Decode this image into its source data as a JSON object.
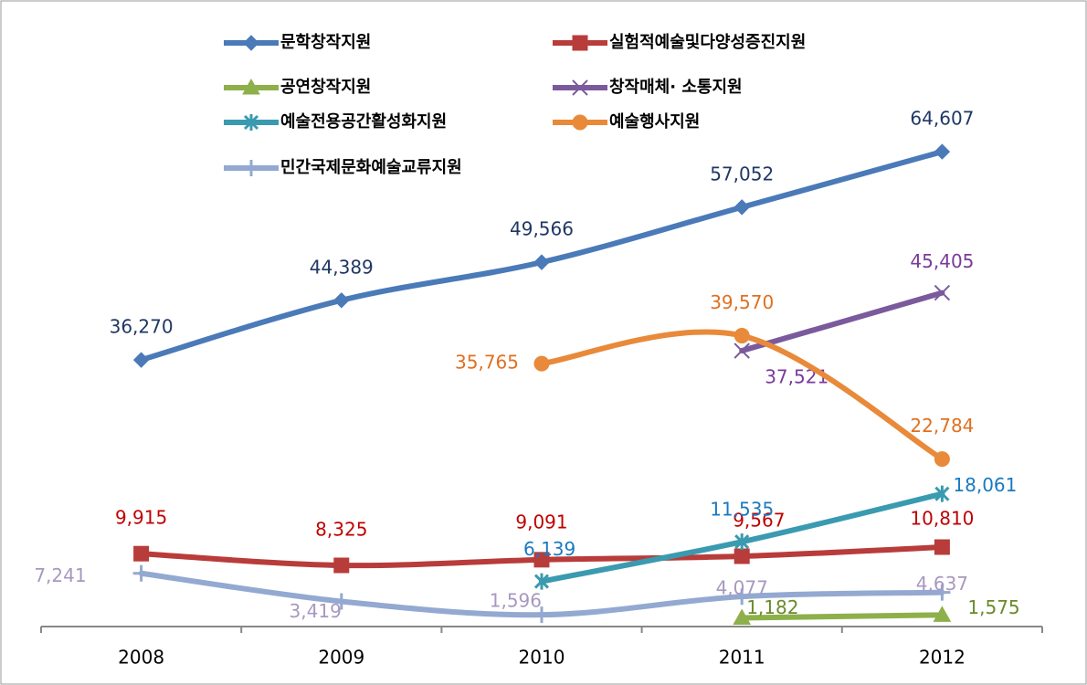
{
  "chart_data": {
    "type": "line",
    "categories": [
      "2008",
      "2009",
      "2010",
      "2011",
      "2012"
    ],
    "ylim": [
      0,
      84000
    ],
    "series": [
      {
        "name": "문학창작지원",
        "color": "#4a7ab8",
        "label_color": "#1f3864",
        "values": [
          36270,
          44389,
          49566,
          57052,
          64607
        ],
        "value_labels": [
          "36,270",
          "44,389",
          "49,566",
          "57,052",
          "64,607"
        ]
      },
      {
        "name": "실험적예술및다양성증진지원",
        "color": "#b83c3a",
        "label_color": "#c00000",
        "values": [
          9915,
          8325,
          9091,
          9567,
          10810
        ],
        "value_labels": [
          "9,915",
          "8,325",
          "9,091",
          "9,567",
          "10,810"
        ]
      },
      {
        "name": "공연창작지원",
        "color": "#8db04a",
        "label_color": "#6a8a2a",
        "values": [
          null,
          null,
          null,
          1182,
          1575
        ],
        "value_labels": [
          null,
          null,
          null,
          "1,182",
          "1,575"
        ]
      },
      {
        "name": "창작매체· 소통지원",
        "color": "#7a5a9c",
        "label_color": "#7a3a9a",
        "values": [
          null,
          null,
          null,
          37521,
          45405
        ],
        "value_labels": [
          null,
          null,
          null,
          "37,521",
          "45,405"
        ]
      },
      {
        "name": "예술전용공간활성화지원",
        "color": "#3a9ab0",
        "label_color": "#1a7ac0",
        "values": [
          null,
          null,
          6139,
          11535,
          18061
        ],
        "value_labels": [
          null,
          null,
          "6,139",
          "11,535",
          "18,061"
        ]
      },
      {
        "name": "예술행사지원",
        "color": "#e88a3a",
        "label_color": "#e07020",
        "values": [
          null,
          null,
          35765,
          39570,
          22784
        ],
        "value_labels": [
          null,
          null,
          "35,765",
          "39,570",
          "22,784"
        ]
      },
      {
        "name": "민간국제문화예술교류지원",
        "color": "#93a9d1",
        "label_color": "#a898c0",
        "values": [
          7241,
          3419,
          1596,
          4077,
          4637
        ],
        "value_labels": [
          "7,241",
          "3,419",
          "1,596",
          "4,077",
          "4,637"
        ]
      }
    ]
  }
}
